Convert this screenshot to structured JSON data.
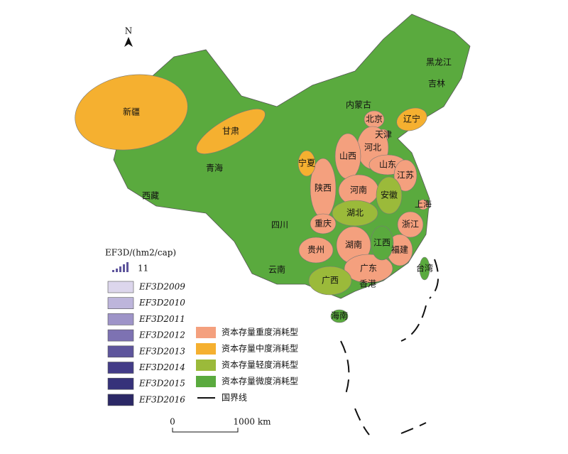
{
  "north": "N",
  "map": {
    "categories": [
      {
        "label": "资本存量重度消耗型",
        "color": "#f4a07e",
        "provinces": [
          "北京",
          "天津",
          "河北",
          "山西",
          "山东",
          "陕西",
          "河南",
          "江苏",
          "上海",
          "浙江",
          "重庆",
          "贵州",
          "湖南",
          "福建",
          "广东"
        ]
      },
      {
        "label": "资本存量中度消耗型",
        "color": "#f5b030",
        "provinces": [
          "新疆",
          "甘肃",
          "宁夏",
          "辽宁"
        ]
      },
      {
        "label": "资本存量轻度消耗型",
        "color": "#9bba3a",
        "provinces": [
          "湖北",
          "安徽",
          "广西"
        ]
      },
      {
        "label": "资本存量微度消耗型",
        "color": "#5aaa3e",
        "provinces": [
          "黑龙江",
          "吉林",
          "内蒙古",
          "青海",
          "西藏",
          "四川",
          "云南",
          "江西",
          "台湾",
          "海南",
          "香港"
        ]
      }
    ],
    "border_label": "国界线"
  },
  "ef_legend": {
    "title": "EF3D/(hm2/cap)",
    "icon_label": "11",
    "years": [
      {
        "label": "EF3D2009",
        "color": "#dcd6ec"
      },
      {
        "label": "EF3D2010",
        "color": "#bdb5db"
      },
      {
        "label": "EF3D2011",
        "color": "#9e94c8"
      },
      {
        "label": "EF3D2012",
        "color": "#7d72b2"
      },
      {
        "label": "EF3D2013",
        "color": "#5e559c"
      },
      {
        "label": "EF3D2014",
        "color": "#433c88"
      },
      {
        "label": "EF3D2015",
        "color": "#36327a"
      },
      {
        "label": "EF3D2016",
        "color": "#2b2866"
      }
    ]
  },
  "scale_bar": {
    "start": "0",
    "end": "1000 km"
  }
}
